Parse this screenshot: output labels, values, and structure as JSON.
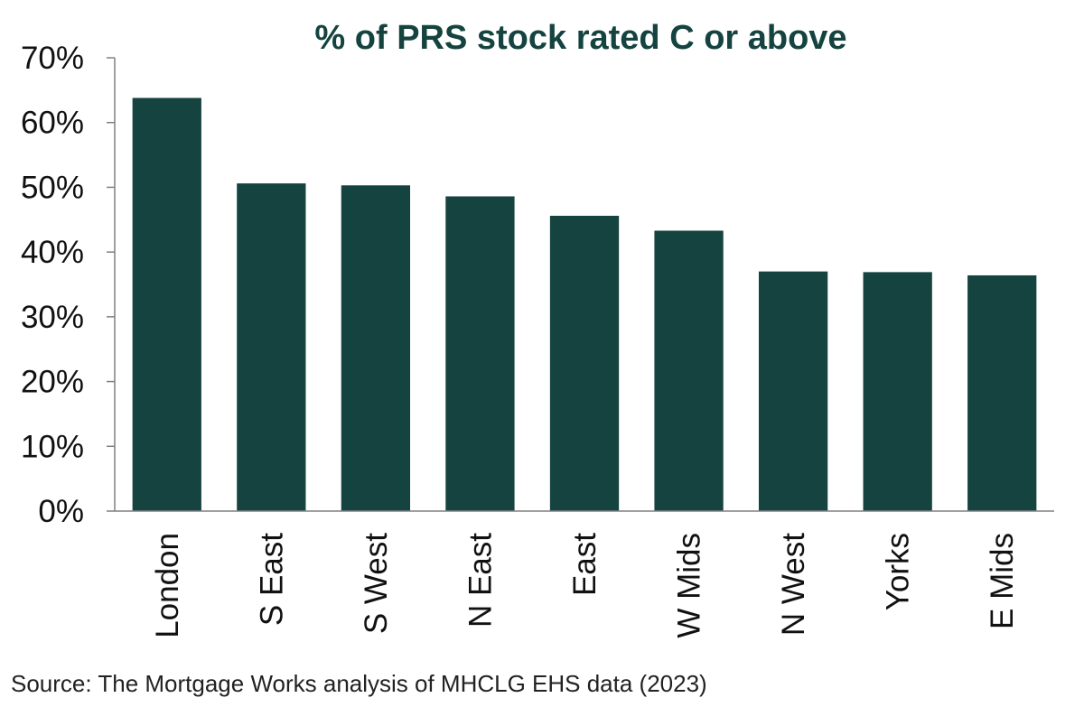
{
  "chart_data": {
    "type": "bar",
    "title": "% of PRS stock rated C or above",
    "categories": [
      "London",
      "S East",
      "S West",
      "N East",
      "East",
      "W Mids",
      "N West",
      "Yorks",
      "E Mids"
    ],
    "values": [
      63.8,
      50.6,
      50.3,
      48.6,
      45.6,
      43.3,
      37.0,
      36.9,
      36.4
    ],
    "ylim": [
      0,
      70
    ],
    "yticks": [
      0,
      10,
      20,
      30,
      40,
      50,
      60,
      70
    ],
    "ytick_labels": [
      "0%",
      "10%",
      "20%",
      "30%",
      "40%",
      "50%",
      "60%",
      "70%"
    ],
    "grid": false,
    "legend": "none",
    "bar_color": "#15433f",
    "title_color": "#15433f",
    "axis_color": "#808080"
  },
  "source": "Source: The Mortgage Works analysis of MHCLG EHS data (2023)"
}
